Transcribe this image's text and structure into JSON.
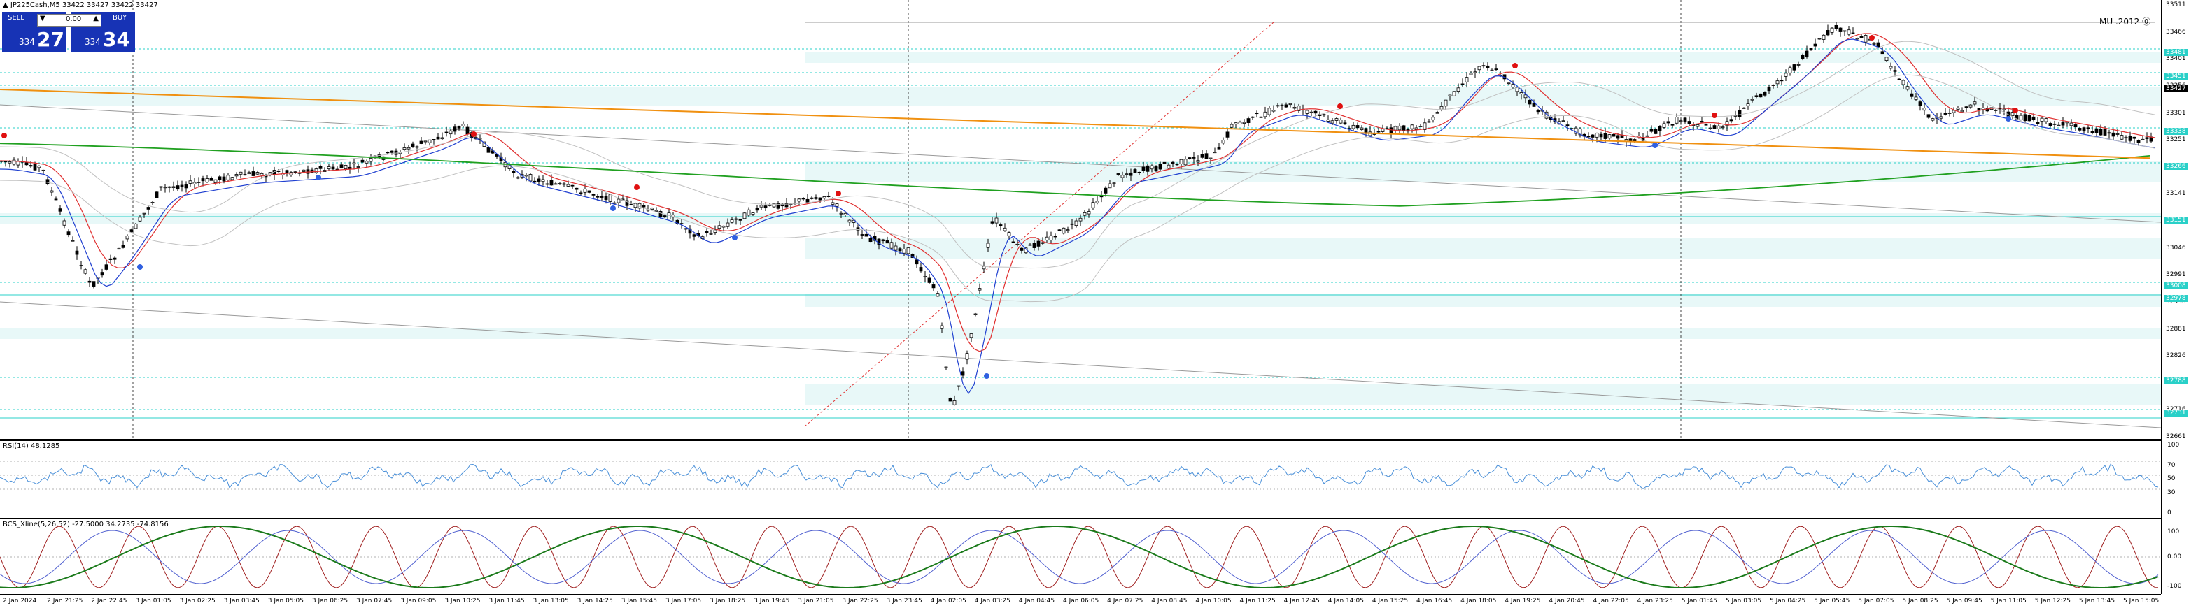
{
  "symbol_title": "▲ JP225Cash,M5  33422 33427 33422 33427",
  "trade_panel": {
    "sell_label": "SELL",
    "buy_label": "BUY",
    "lot_value": "0.00",
    "lot_down": "▼",
    "lot_up": "▲",
    "sell_small": "334",
    "sell_big": "27",
    "buy_small": "334",
    "buy_big": "34"
  },
  "mini_label": "MU .2012 ⓪",
  "rsi_title": "RSI(14) 48.1285",
  "stoch_title": "BCS_Xline(5,26,52) -27.5000 34.2735 -74.8156",
  "price_axis": [
    "33511",
    "33466",
    "33401",
    "33356",
    "33301",
    "33251",
    "33196",
    "33141",
    "33096",
    "33046",
    "32991",
    "32936",
    "32881",
    "32826",
    "32771",
    "32716",
    "32661"
  ],
  "price_tags": [
    {
      "text": "33481",
      "kind": "cyan"
    },
    {
      "text": "33451",
      "kind": "cyan"
    },
    {
      "text": "33427",
      "kind": "cur"
    },
    {
      "text": "33338",
      "kind": "cyan"
    },
    {
      "text": "33266",
      "kind": "cyan"
    },
    {
      "text": "33151",
      "kind": "cyan"
    },
    {
      "text": "33008",
      "kind": "cyan"
    },
    {
      "text": "32978",
      "kind": "cyan"
    },
    {
      "text": "32788",
      "kind": "cyan"
    },
    {
      "text": "32731",
      "kind": "cyan"
    }
  ],
  "rsi_axis": [
    "100",
    "70",
    "50",
    "30",
    "0"
  ],
  "stoch_axis": [
    "100",
    "0.00",
    "-100"
  ],
  "time_axis": [
    "2 Jan 2024",
    "2 Jan 21:25",
    "2 Jan 22:45",
    "3 Jan 01:05",
    "3 Jan 02:25",
    "3 Jan 03:45",
    "3 Jan 05:05",
    "3 Jan 06:25",
    "3 Jan 07:45",
    "3 Jan 09:05",
    "3 Jan 10:25",
    "3 Jan 11:45",
    "3 Jan 13:05",
    "3 Jan 14:25",
    "3 Jan 15:45",
    "3 Jan 17:05",
    "3 Jan 18:25",
    "3 Jan 19:45",
    "3 Jan 21:05",
    "3 Jan 22:25",
    "3 Jan 23:45",
    "4 Jan 02:05",
    "4 Jan 03:25",
    "4 Jan 04:45",
    "4 Jan 06:05",
    "4 Jan 07:25",
    "4 Jan 08:45",
    "4 Jan 10:05",
    "4 Jan 11:25",
    "4 Jan 12:45",
    "4 Jan 14:05",
    "4 Jan 15:25",
    "4 Jan 16:45",
    "4 Jan 18:05",
    "4 Jan 19:25",
    "4 Jan 20:45",
    "4 Jan 22:05",
    "4 Jan 23:25",
    "5 Jan 01:45",
    "5 Jan 03:05",
    "5 Jan 04:25",
    "5 Jan 05:45",
    "5 Jan 07:05",
    "5 Jan 08:25",
    "5 Jan 09:45",
    "5 Jan 11:05",
    "5 Jan 12:25",
    "5 Jan 13:45",
    "5 Jan 15:05"
  ],
  "colors": {
    "candle": "#000000",
    "ma_red": "#e03030",
    "ma_blue": "#2040d0",
    "ma_green": "#20a020",
    "ma_orange": "#f09010",
    "rsi_line": "#4a90d9",
    "stoch_dark": "#1a7a1a",
    "stoch_red": "#a02020",
    "stoch_blue": "#5060d0",
    "sell_btn": "#1733b5",
    "zone_fill": "#e8f8f8",
    "level_cyan": "#29d0c8"
  }
}
